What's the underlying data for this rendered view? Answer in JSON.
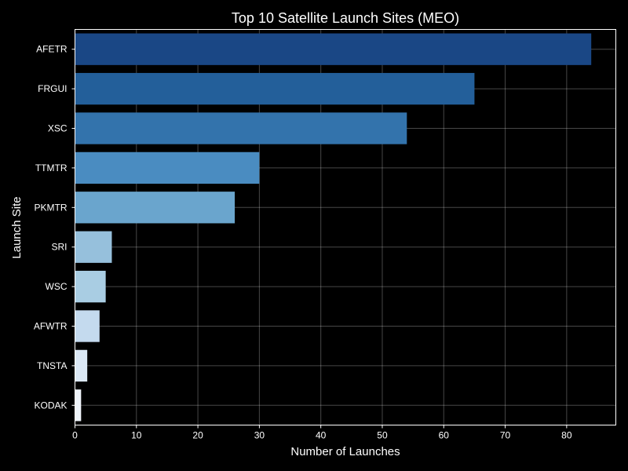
{
  "chart_data": {
    "type": "bar",
    "orientation": "horizontal",
    "title": "Top 10 Satellite Launch Sites (MEO)",
    "xlabel": "Number of Launches",
    "ylabel": "Launch Site",
    "xlim": [
      0,
      88
    ],
    "xticks": [
      0,
      10,
      20,
      30,
      40,
      50,
      60,
      70,
      80
    ],
    "categories": [
      "AFETR",
      "FRGUI",
      "XSC",
      "TTMTR",
      "PKMTR",
      "SRI",
      "WSC",
      "AFWTR",
      "TNSTA",
      "KODAK"
    ],
    "values": [
      84,
      65,
      54,
      30,
      26,
      6,
      5,
      4,
      2,
      1
    ],
    "colors": [
      "#1a4785",
      "#235f9a",
      "#3373ac",
      "#4a8cc1",
      "#6aa5cd",
      "#96c0dc",
      "#a9cde3",
      "#c4daee",
      "#dbe8f5",
      "#f0f5fb"
    ],
    "grid": true,
    "background": "#000000"
  }
}
